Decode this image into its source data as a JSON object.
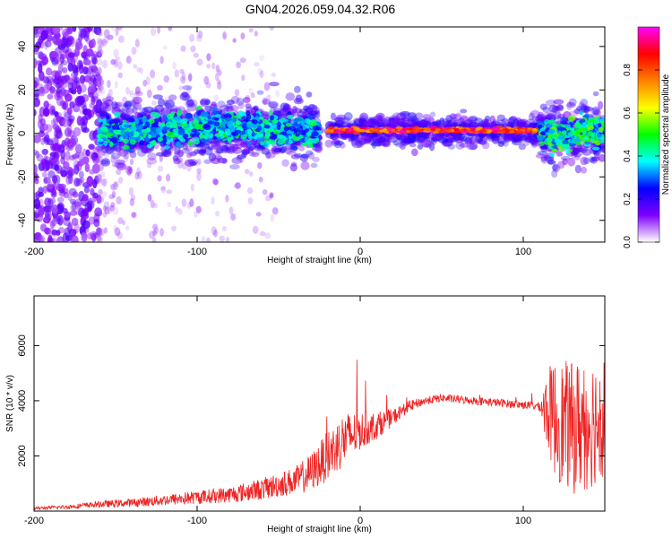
{
  "title": "GN04.2026.059.04.32.R06",
  "chart_data": [
    {
      "type": "heatmap",
      "xlabel": "Height of straight line (km)",
      "ylabel": "Frequency (Hz)",
      "xlim": [
        -200,
        150
      ],
      "ylim": [
        -50,
        49
      ],
      "x_ticks": [
        -200,
        -100,
        0,
        100
      ],
      "y_ticks": [
        -40,
        -20,
        0,
        20,
        40
      ],
      "colorbar": {
        "label": "Normalized spectral amplitude",
        "range": [
          0,
          1
        ],
        "ticks": [
          0.0,
          0.2,
          0.4,
          0.6,
          0.8
        ],
        "tick_labels": [
          "0.0",
          "0.2",
          "0.4",
          "0.6",
          "0.8"
        ],
        "colormap": [
          "#ffffff",
          "#8000ff",
          "#0000ff",
          "#00ffff",
          "#00ff00",
          "#ffff00",
          "#ff8000",
          "#ff0000",
          "#ff00ff"
        ]
      },
      "features": [
        {
          "region": "noise",
          "x_range": [
            -200,
            -160
          ],
          "freq_range": [
            -50,
            49
          ],
          "amplitude": 0.1
        },
        {
          "region": "turbulent band",
          "x_range": [
            -160,
            -25
          ],
          "freq_center": 2,
          "freq_width": 8,
          "amplitude": 0.35
        },
        {
          "region": "steady line",
          "x_range": [
            -20,
            110
          ],
          "freq_center": 1.5,
          "freq_width": 2,
          "amplitude": 0.9
        },
        {
          "region": "turbulent band",
          "x_range": [
            110,
            150
          ],
          "freq_center": 0,
          "freq_width": 8,
          "amplitude": 0.4
        }
      ]
    },
    {
      "type": "line",
      "xlabel": "Height of straight line (km)",
      "ylabel": "SNR (10 * v/v)",
      "xlim": [
        -200,
        150
      ],
      "ylim": [
        0,
        7800
      ],
      "x_ticks": [
        -200,
        -100,
        0,
        100
      ],
      "y_ticks": [
        2000,
        4000,
        6000
      ],
      "color": "#ee2222",
      "series": [
        {
          "x": [
            -200,
            -180,
            -160,
            -140,
            -120,
            -100,
            -80,
            -60,
            -40,
            -30,
            -20,
            -10,
            0,
            10,
            20,
            30,
            40,
            50,
            60,
            70,
            80,
            90,
            100,
            110,
            115,
            120,
            130,
            140,
            150
          ],
          "values": [
            100,
            150,
            250,
            300,
            400,
            500,
            600,
            800,
            1100,
            1400,
            2000,
            2600,
            2900,
            3100,
            3400,
            3800,
            4000,
            4100,
            4050,
            4000,
            3950,
            3900,
            3850,
            3800,
            3700,
            3300,
            3000,
            3200,
            3500
          ],
          "spread": [
            50,
            80,
            120,
            150,
            200,
            250,
            300,
            400,
            500,
            700,
            900,
            1000,
            700,
            500,
            300,
            200,
            150,
            150,
            150,
            150,
            150,
            150,
            150,
            150,
            1500,
            2200,
            2400,
            2500,
            2200
          ]
        }
      ]
    }
  ]
}
